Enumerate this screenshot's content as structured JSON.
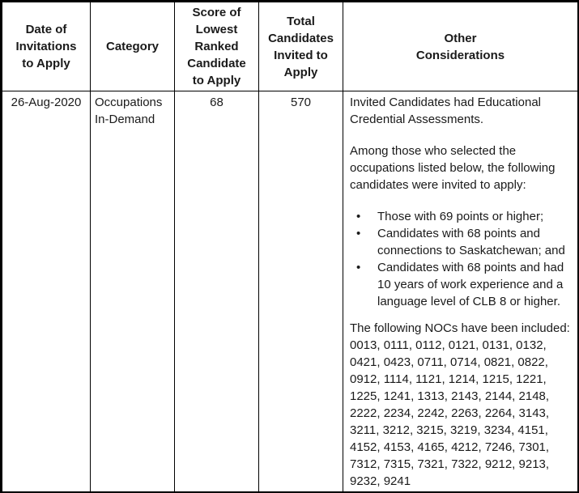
{
  "colors": {
    "background": "#ffffff",
    "border": "#000000",
    "text": "#1a1a1a"
  },
  "table": {
    "headers": [
      "Date of\nInvitations\nto Apply",
      "Category",
      "Score of\nLowest\nRanked\nCandidate\nto Apply",
      "Total\nCandidates\nInvited to\nApply",
      "Other\nConsiderations"
    ],
    "row": {
      "date": "26-Aug-2020",
      "category": "Occupations In-Demand",
      "score": "68",
      "total": "570",
      "other": {
        "p1": "Invited Candidates had Educational Credential Assessments.",
        "p2": "Among those who selected the occupations listed below, the following candidates were invited to apply:",
        "bullets": [
          "Those with 69 points or higher;",
          "Candidates with 68 points and connections to Saskatchewan; and",
          "Candidates with 68 points and had 10 years of work experience and a language level of CLB 8 or higher."
        ],
        "nocs_intro": "The following NOCs have been included:",
        "nocs_codes": "0013, 0111, 0112, 0121, 0131, 0132, 0421, 0423, 0711, 0714, 0821, 0822, 0912, 1114, 1121, 1214, 1215, 1221, 1225, 1241, 1313, 2143, 2144, 2148, 2222, 2234, 2242, 2263, 2264, 3143, 3211, 3212, 3215, 3219, 3234, 4151, 4152, 4153, 4165, 4212, 7246, 7301, 7312, 7315, 7321, 7322, 9212, 9213, 9232, 9241"
      }
    }
  }
}
